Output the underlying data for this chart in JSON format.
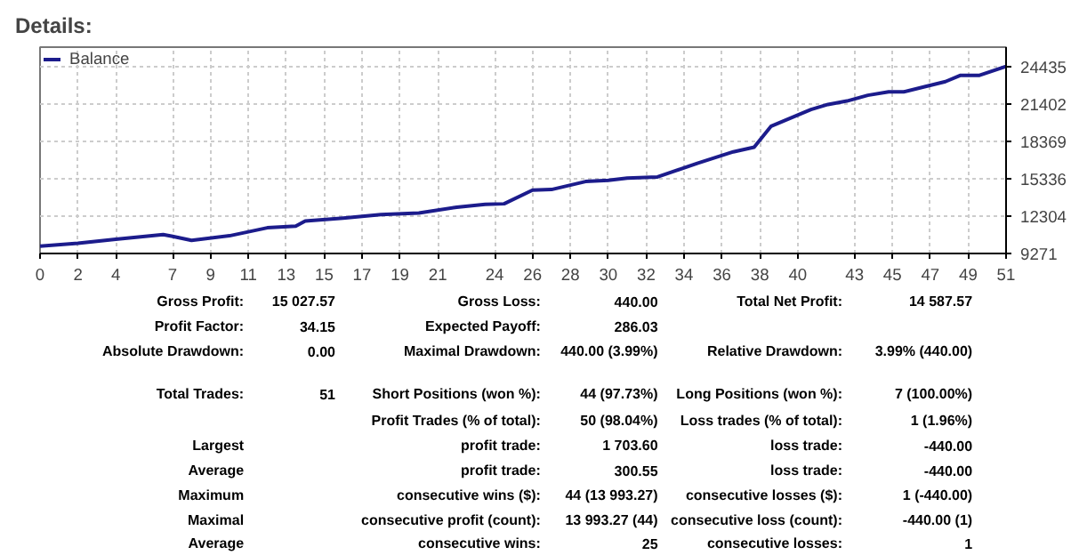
{
  "chart_data": {
    "type": "line",
    "title": "Details:",
    "x": [
      0,
      2,
      4,
      6.5,
      7,
      8,
      10,
      12,
      13.5,
      14,
      16,
      18,
      20,
      22,
      23.5,
      24.5,
      26,
      27,
      28.8,
      30,
      31,
      32.6,
      34.7,
      36.6,
      37.7,
      38.6,
      40.7,
      41.6,
      42.6,
      43.7,
      44.8,
      45.6,
      46.7,
      47.8,
      48.6,
      49.6,
      51
    ],
    "series": [
      {
        "name": "Balance",
        "color": "#1c1c8c",
        "values": [
          9873,
          10104,
          10428,
          10800,
          10660,
          10336,
          10706,
          11355,
          11493,
          11910,
          12142,
          12420,
          12558,
          13021,
          13253,
          13300,
          14410,
          14457,
          15105,
          15198,
          15383,
          15475,
          16586,
          17512,
          17883,
          19596,
          20938,
          21355,
          21633,
          22096,
          22374,
          22374,
          22791,
          23207,
          23717,
          23717,
          24435
        ]
      }
    ],
    "xlim": [
      0,
      51
    ],
    "xticks": [
      0,
      2,
      4,
      7,
      9,
      11,
      13,
      15,
      17,
      19,
      21,
      24,
      26,
      28,
      30,
      32,
      34,
      36,
      38,
      40,
      43,
      45,
      47,
      49,
      51
    ],
    "ylim": [
      9271,
      26000
    ],
    "yticks": [
      9271,
      12304,
      15336,
      18369,
      21402,
      24435
    ],
    "grid": true,
    "legend": "top left",
    "marker": "none",
    "line_style": "solid",
    "annotations": [
      "Gross Profit:",
      "15 027.57",
      "Gross Loss:",
      "440.00",
      "Total Net Profit:",
      "14 587.57",
      "Profit Factor:",
      "34.15",
      "Expected Payoff:",
      "286.03",
      "Absolute Drawdown:",
      "0.00",
      "Maximal Drawdown:",
      "440.00 (3.99%)",
      "Relative Drawdown:",
      "3.99% (440.00)",
      "Total Trades:",
      "51",
      "Short Positions (won %):",
      "44 (97.73%)",
      "Long Positions (won %):",
      "7 (100.00%)",
      "Profit Trades (% of total):",
      "50 (98.04%)",
      "Loss trades (% of total):",
      "1 (1.96%)",
      "Largest",
      "profit trade:",
      "1 703.60",
      "loss trade:",
      "-440.00",
      "Average",
      "profit trade:",
      "300.55",
      "loss trade:",
      "-440.00",
      "Maximum",
      "consecutive wins ($):",
      "44 (13 993.27)",
      "consecutive losses ($):",
      "1 (-440.00)",
      "Maximal",
      "consecutive profit (count):",
      "13 993.27 (44)",
      "consecutive loss (count):",
      "-440.00 (1)",
      "Average",
      "consecutive wins:",
      "25",
      "consecutive losses:",
      "1"
    ]
  }
}
